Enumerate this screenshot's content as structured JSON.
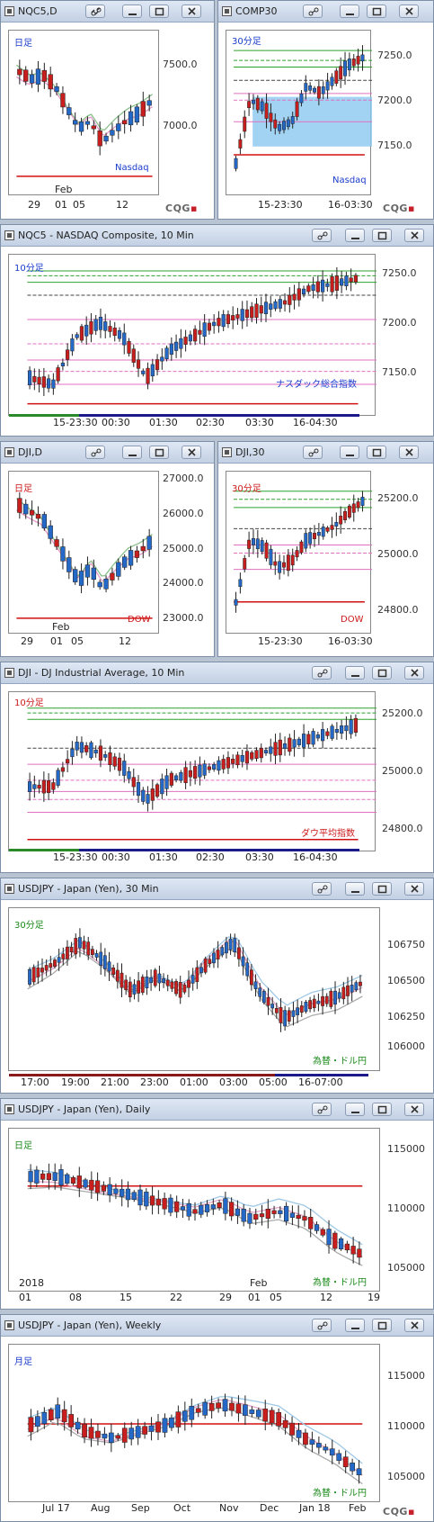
{
  "app": {
    "logo_text": "CQG",
    "footer_mark": "CQG"
  },
  "colors": {
    "up": "#2468c8",
    "down": "#c81e1e"
  },
  "w1": {
    "title": "NQC5,D",
    "tag": "日足",
    "tag_color": "#1a3ccc",
    "yaxis": [
      "7500.0",
      "7000.0"
    ],
    "xaxis": [
      "29",
      "01",
      "05",
      "12"
    ],
    "month": "Feb",
    "name": "Nasdaq",
    "name_color": "#1a3ccc"
  },
  "w2": {
    "title": "COMP30",
    "tag": "30分足",
    "tag_color": "#1a3ccc",
    "yaxis": [
      "7250.0",
      "7200.0",
      "7150.0"
    ],
    "xaxis": [
      "15-23:30",
      "16-03:30"
    ],
    "name": "Nasdaq",
    "name_color": "#1a3ccc"
  },
  "w3": {
    "title": "NQC5 - NASDAQ Composite, 10 Min",
    "tag": "10分足",
    "tag_color": "#1a3ccc",
    "yaxis": [
      "7250.0",
      "7200.0",
      "7150.0"
    ],
    "xaxis": [
      "15-23:30",
      "00:30",
      "01:30",
      "02:30",
      "03:30",
      "16-04:30"
    ],
    "name": "ナスダック総合指数",
    "name_color": "#1a3ccc"
  },
  "w4": {
    "title": "DJI,D",
    "tag": "日足",
    "tag_color": "#cc1a1a",
    "yaxis": [
      "27000.0",
      "26000.0",
      "25000.0",
      "24000.0",
      "23000.0"
    ],
    "xaxis": [
      "29",
      "01",
      "05",
      "12"
    ],
    "month": "Feb",
    "name": "DOW",
    "name_color": "#cc1a1a"
  },
  "w5": {
    "title": "DJI,30",
    "tag": "30分足",
    "tag_color": "#cc1a1a",
    "yaxis": [
      "25200.0",
      "25000.0",
      "24800.0"
    ],
    "xaxis": [
      "15-23:30",
      "16-03:30"
    ],
    "name": "DOW",
    "name_color": "#cc1a1a"
  },
  "w6": {
    "title": "DJI - DJ Industrial Average, 10 Min",
    "tag": "10分足",
    "tag_color": "#cc1a1a",
    "yaxis": [
      "25200.0",
      "25000.0",
      "24800.0"
    ],
    "xaxis": [
      "15-23:30",
      "00:30",
      "01:30",
      "02:30",
      "03:30",
      "16-04:30"
    ],
    "name": "ダウ平均指数",
    "name_color": "#cc1a1a"
  },
  "w7": {
    "title": "USDJPY - Japan (Yen), 30 Min",
    "tag": "30分足",
    "tag_color": "#1a8a1a",
    "yaxis": [
      "106750",
      "106500",
      "106250",
      "106000"
    ],
    "xaxis": [
      "17:00",
      "19:00",
      "21:00",
      "23:00",
      "01:00",
      "03:00",
      "05:00",
      "16-07:00"
    ],
    "name": "為替・ドル円",
    "name_color": "#1a8a1a"
  },
  "w8": {
    "title": "USDJPY - Japan (Yen), Daily",
    "tag": "日足",
    "tag_color": "#1a8a1a",
    "yaxis": [
      "115000",
      "110000",
      "105000"
    ],
    "xaxis": [
      "01",
      "08",
      "15",
      "22",
      "29",
      "01",
      "05",
      "12",
      "19"
    ],
    "year": "2018",
    "month": "Feb",
    "name": "為替・ドル円",
    "name_color": "#1a8a1a"
  },
  "w9": {
    "title": "USDJPY - Japan (Yen), Weekly",
    "tag": "月足",
    "tag_color": "#1a3ccc",
    "yaxis": [
      "115000",
      "110000",
      "105000"
    ],
    "xaxis": [
      "Jul 17",
      "Aug",
      "Sep",
      "Oct",
      "Nov",
      "Dec",
      "Jan 18",
      "Feb"
    ],
    "name": "為替・ドル円",
    "name_color": "#1a8a1a"
  }
}
